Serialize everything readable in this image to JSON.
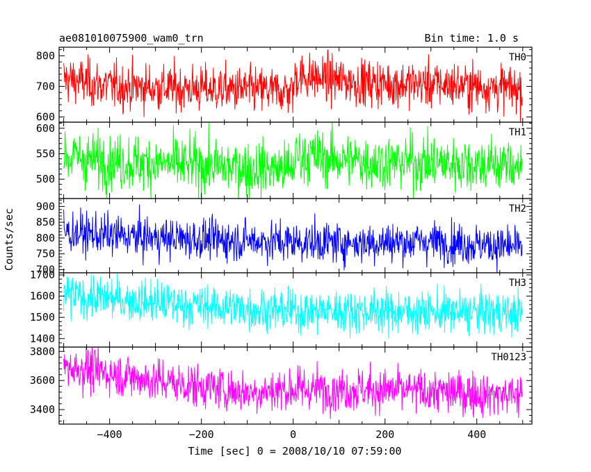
{
  "chart_data": {
    "type": "line",
    "title_left": "ae081010075900_wam0_trn",
    "title_right": "Bin time: 1.0 s",
    "xlabel": "Time [sec] 0 = 2008/10/10 07:59:00",
    "ylabel": "Counts/sec",
    "xlim": [
      -510,
      520
    ],
    "x_ticks": [
      -400,
      -200,
      0,
      200,
      400
    ],
    "x_tick_labels": [
      "−400",
      "−200",
      "0",
      "200",
      "400"
    ],
    "x_range_data": [
      -500,
      499
    ],
    "bin_time": 1.0,
    "grid": false,
    "panels": [
      {
        "name": "TH0",
        "color": "#ff0000",
        "ylim": [
          583,
          828
        ],
        "ticks": [
          600,
          700,
          800
        ],
        "tick_labels": [
          "600",
          "700",
          "800"
        ],
        "level": [
          [
            -500,
            725
          ],
          [
            -400,
            700
          ],
          [
            -100,
            688
          ],
          [
            0,
            685
          ],
          [
            5,
            735
          ],
          [
            150,
            712
          ],
          [
            350,
            705
          ],
          [
            499,
            690
          ]
        ],
        "spread": 38
      },
      {
        "name": "TH1",
        "color": "#00ff00",
        "ylim": [
          462,
          612
        ],
        "ticks": [
          500,
          550,
          600
        ],
        "tick_labels": [
          "500",
          "550",
          "600"
        ],
        "level": [
          [
            -500,
            545
          ],
          [
            -400,
            535
          ],
          [
            -100,
            522
          ],
          [
            0,
            520
          ],
          [
            5,
            548
          ],
          [
            150,
            535
          ],
          [
            499,
            528
          ]
        ],
        "spread": 27
      },
      {
        "name": "TH2",
        "color": "#0000ff",
        "ylim": [
          690,
          925
        ],
        "ticks": [
          700,
          750,
          800,
          850,
          900
        ],
        "tick_labels": [
          "700",
          "750",
          "800",
          "850",
          "900"
        ],
        "level": [
          [
            -500,
            818
          ],
          [
            -300,
            800
          ],
          [
            0,
            788
          ],
          [
            150,
            785
          ],
          [
            300,
            790
          ],
          [
            499,
            770
          ]
        ],
        "spread": 32
      },
      {
        "name": "TH3",
        "color": "#00ffff",
        "ylim": [
          1360,
          1710
        ],
        "ticks": [
          1400,
          1500,
          1600,
          1700
        ],
        "tick_labels": [
          "1400",
          "1500",
          "1600",
          "1700"
        ],
        "level": [
          [
            -500,
            1605
          ],
          [
            -300,
            1570
          ],
          [
            -100,
            1540
          ],
          [
            0,
            1530
          ],
          [
            150,
            1530
          ],
          [
            499,
            1520
          ]
        ],
        "spread": 50
      },
      {
        "name": "TH0123",
        "color": "#ff00ff",
        "ylim": [
          3300,
          3830
        ],
        "ticks": [
          3400,
          3600,
          3800
        ],
        "tick_labels": [
          "3400",
          "3600",
          "3800"
        ],
        "level": [
          [
            -500,
            3700
          ],
          [
            -300,
            3600
          ],
          [
            -100,
            3520
          ],
          [
            0,
            3540
          ],
          [
            150,
            3540
          ],
          [
            499,
            3500
          ]
        ],
        "spread": 75
      }
    ]
  }
}
